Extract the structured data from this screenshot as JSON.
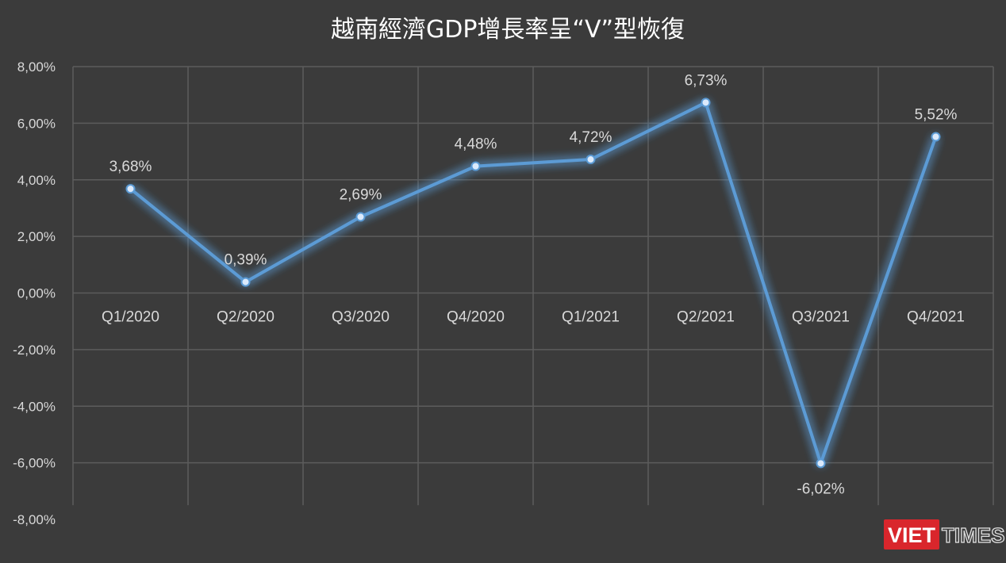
{
  "chart_data": {
    "type": "line",
    "title": "越南經濟GDP增長率呈“V”型恢復",
    "categories": [
      "Q1/2020",
      "Q2/2020",
      "Q3/2020",
      "Q4/2020",
      "Q1/2021",
      "Q2/2021",
      "Q3/2021",
      "Q4/2021"
    ],
    "series": [
      {
        "values": [
          3.68,
          0.39,
          2.69,
          4.48,
          4.72,
          6.73,
          -6.02,
          5.52
        ]
      }
    ],
    "data_labels": [
      "3,68%",
      "0,39%",
      "2,69%",
      "4,48%",
      "4,72%",
      "6,73%",
      "-6,02%",
      "5,52%"
    ],
    "y_ticks": [
      8,
      6,
      4,
      2,
      0,
      -2,
      -4,
      -6,
      -8
    ],
    "y_tick_labels": [
      "8,00%",
      "6,00%",
      "4,00%",
      "2,00%",
      "0,00%",
      "-2,00%",
      "-4,00%",
      "-6,00%",
      "-8,00%"
    ],
    "ylim": [
      -8,
      8
    ],
    "grid": true,
    "colors": {
      "line": "#5b9bd5",
      "background": "#3b3b3b",
      "grid": "#5c5c5c",
      "text": "#d9d9d9"
    }
  },
  "watermark": {
    "viet": "VIET",
    "times": "TIMES"
  }
}
